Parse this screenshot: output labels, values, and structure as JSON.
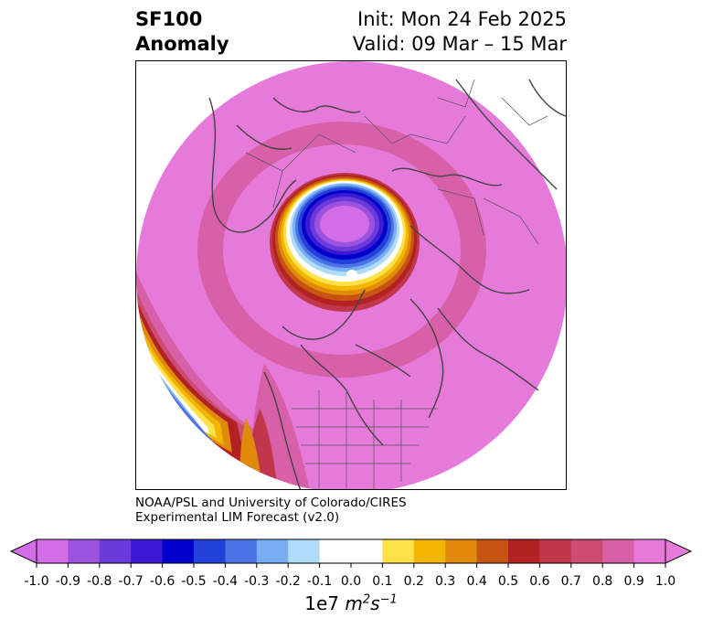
{
  "header": {
    "variable": "SF100",
    "kind": "Anomaly",
    "init": "Init: Mon 24 Feb 2025",
    "valid": "Valid: 09 Mar – 15 Mar"
  },
  "credit": {
    "line1": "NOAA/PSL and University of Colorado/CIRES",
    "line2": "Experimental LIM Forecast (v2.0)"
  },
  "colorbar": {
    "ticks": [
      "-1.0",
      "-0.9",
      "-0.8",
      "-0.7",
      "-0.6",
      "-0.5",
      "-0.4",
      "-0.3",
      "-0.2",
      "-0.1",
      "0.0",
      "0.1",
      "0.2",
      "0.3",
      "0.4",
      "0.5",
      "0.6",
      "0.7",
      "0.8",
      "0.9",
      "1.0"
    ],
    "colors": [
      "#d36ee8",
      "#9b52df",
      "#6a3bd9",
      "#3a1ad2",
      "#0000cc",
      "#2340d8",
      "#4a72e6",
      "#78aef3",
      "#b0dcfa",
      "#ffffff",
      "#ffffff",
      "#ffe14a",
      "#f2b600",
      "#e08a0c",
      "#c85414",
      "#b22222",
      "#c1364a",
      "#cc4c74",
      "#d760a8",
      "#e67adb"
    ],
    "under_color": "#d36ee8",
    "over_color": "#e67adb",
    "unit_prefix": "1e7",
    "unit_base": "m",
    "unit_exp1": "2",
    "unit_s": "s",
    "unit_exp2": "−1"
  },
  "map": {
    "projection": "north polar stereographic",
    "background_color": "#e67adb",
    "anomaly_center": "Arctic / Canadian Archipelago, strong negative",
    "coastline_color": "#444444"
  }
}
